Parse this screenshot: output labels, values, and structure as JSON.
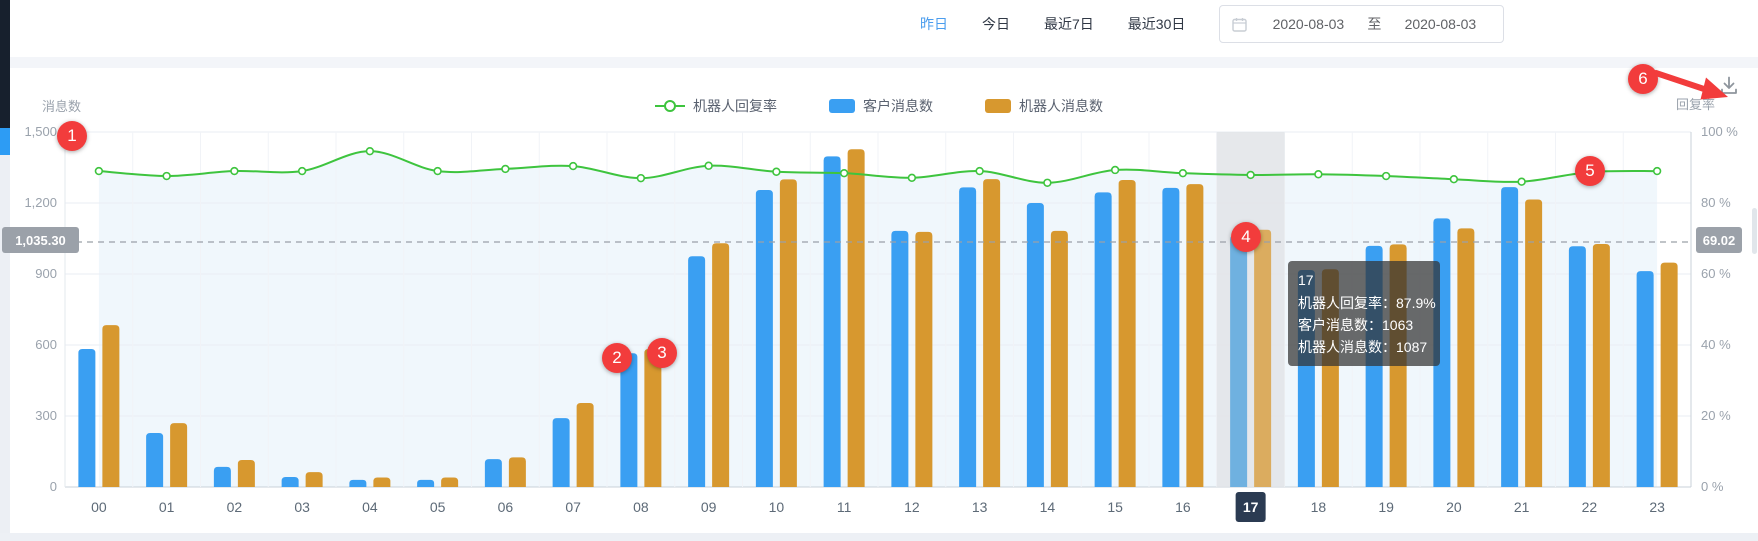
{
  "header": {
    "tabs": [
      {
        "label": "昨日",
        "active": true
      },
      {
        "label": "今日",
        "active": false
      },
      {
        "label": "最近7日",
        "active": false
      },
      {
        "label": "最近30日",
        "active": false
      }
    ],
    "date_range": {
      "start": "2020-08-03",
      "separator": "至",
      "end": "2020-08-03"
    }
  },
  "tooltip": {
    "title": "17",
    "rows": [
      {
        "label": "机器人回复率：",
        "value": "87.9%"
      },
      {
        "label": "客户消息数：",
        "value": "1063"
      },
      {
        "label": "机器人消息数：",
        "value": "1087"
      }
    ]
  },
  "annotations": [
    "1",
    "2",
    "3",
    "4",
    "5",
    "6"
  ],
  "chart_data": {
    "type": "bar",
    "title": "",
    "categories": [
      "00",
      "01",
      "02",
      "03",
      "04",
      "05",
      "06",
      "07",
      "08",
      "09",
      "10",
      "11",
      "12",
      "13",
      "14",
      "15",
      "16",
      "17",
      "18",
      "19",
      "20",
      "21",
      "22",
      "23"
    ],
    "series": [
      {
        "name": "客户消息数",
        "type": "bar",
        "color": "#3a9ff2",
        "highlight_color": "#6fb1e0",
        "values": [
          583,
          228,
          85,
          42,
          30,
          30,
          118,
          291,
          565,
          975,
          1255,
          1397,
          1082,
          1266,
          1200,
          1245,
          1264,
          1063,
          917,
          1019,
          1135,
          1267,
          1017,
          912
        ]
      },
      {
        "name": "机器人消息数",
        "type": "bar",
        "color": "#d7982f",
        "highlight_color": "#dbac5f",
        "values": [
          684,
          270,
          114,
          63,
          40,
          40,
          125,
          355,
          583,
          1030,
          1300,
          1427,
          1078,
          1301,
          1082,
          1297,
          1280,
          1087,
          920,
          1025,
          1093,
          1215,
          1027,
          948
        ]
      },
      {
        "name": "机器人回复率",
        "type": "line",
        "axis": "right",
        "color": "#3ec43e",
        "values": [
          89,
          87.6,
          89,
          89,
          94.6,
          89,
          89.6,
          90.4,
          87,
          90.5,
          88.8,
          88.4,
          87.1,
          89,
          85.7,
          89.3,
          88.4,
          87.9,
          88.1,
          87.6,
          86.7,
          86,
          88.7,
          89
        ]
      }
    ],
    "left_axis": {
      "title": "消息数",
      "min": 0,
      "max": 1500,
      "tick_values": [
        0,
        300,
        600,
        900,
        1200,
        1500
      ],
      "tick_labels": [
        "0",
        "300",
        "600",
        "900",
        "1,200",
        "1,500"
      ]
    },
    "right_axis": {
      "title": "回复率",
      "min": 0,
      "max": 100,
      "tick_values": [
        0,
        20,
        40,
        60,
        80,
        100
      ],
      "tick_labels": [
        "0 %",
        "20 %",
        "40 %",
        "60 %",
        "80 %",
        "100 %"
      ]
    },
    "average_line": {
      "left_value": 1035.3,
      "left_label": "1,035.30",
      "right_value": 69.02,
      "right_label": "69.02"
    },
    "highlighted_category": "17",
    "legend_position": "top",
    "grid": true
  }
}
